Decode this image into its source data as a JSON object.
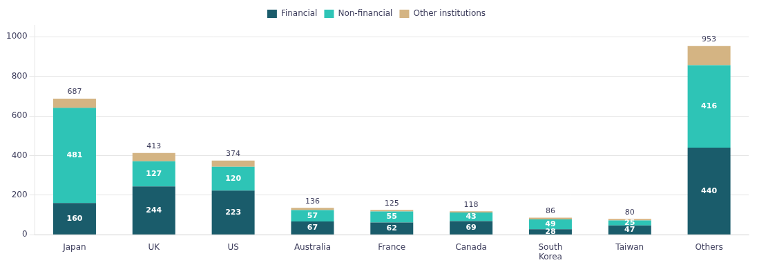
{
  "chart_data": {
    "type": "bar",
    "stacked": true,
    "categories": [
      "Japan",
      "UK",
      "US",
      "Australia",
      "France",
      "Canada",
      "South\nKorea",
      "Taiwan",
      "Others"
    ],
    "series": [
      {
        "name": "Financial",
        "color": "#1a5c6b",
        "values": [
          160,
          244,
          223,
          67,
          62,
          69,
          28,
          47,
          440
        ],
        "data_labels": true
      },
      {
        "name": "Non-financial",
        "color": "#2ec4b6",
        "values": [
          481,
          127,
          120,
          57,
          55,
          43,
          49,
          25,
          416
        ],
        "data_labels": true
      },
      {
        "name": "Other institutions",
        "color": "#d4b483",
        "values": [
          46,
          42,
          31,
          12,
          8,
          6,
          9,
          8,
          97
        ],
        "data_labels": false
      }
    ],
    "totals": [
      687,
      413,
      374,
      136,
      125,
      118,
      86,
      80,
      953
    ],
    "ylim": [
      0,
      1060
    ],
    "yticks": [
      0,
      200,
      400,
      600,
      800,
      1000
    ],
    "grid": "y",
    "legend": "top"
  }
}
